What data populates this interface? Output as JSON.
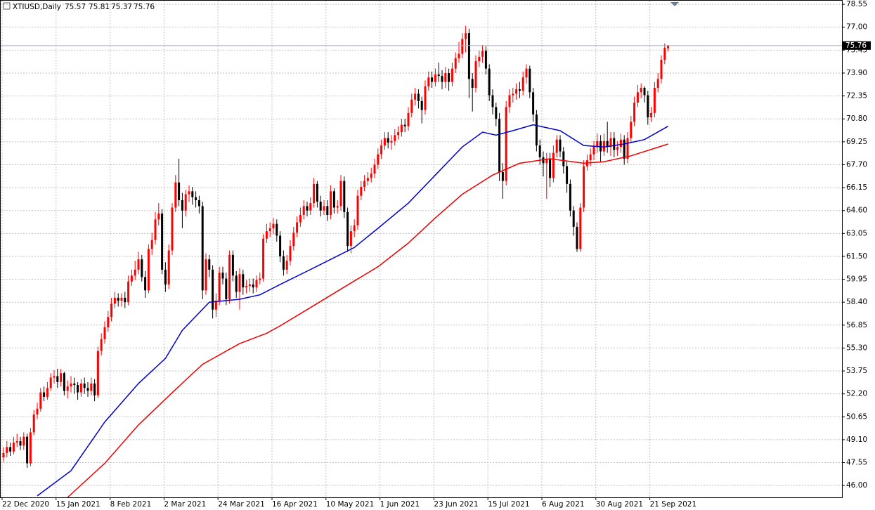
{
  "chart_data": {
    "type": "candlestick",
    "header": {
      "symbol": "XTIUSD,Daily",
      "values": [
        75.57,
        75.81,
        75.37,
        75.76
      ]
    },
    "up_color": "#ff0000",
    "down_color": "#000000",
    "grid": true,
    "ylim": [
      45.2,
      78.84
    ],
    "yticks": [
      78.55,
      {
        "value": 77,
        "label": "77.00"
      },
      75.45,
      {
        "value": 73.9,
        "label": "73.90"
      },
      72.35,
      {
        "value": 70.8,
        "label": "70.80"
      },
      69.25,
      {
        "value": 67.7,
        "label": "67.70"
      },
      66.15,
      {
        "value": 64.6,
        "label": "64.60"
      },
      63.05,
      {
        "value": 61.5,
        "label": "61.50"
      },
      59.95,
      {
        "value": 58.4,
        "label": "58.40"
      },
      56.85,
      {
        "value": 55.3,
        "label": "55.30"
      },
      53.75,
      {
        "value": 52.2,
        "label": "52.20"
      },
      50.65,
      {
        "value": 49.1,
        "label": "49.10"
      },
      47.55,
      {
        "value": 46,
        "label": "46.00"
      }
    ],
    "categories": [
      "22 Dec 2020",
      null,
      null,
      null,
      null,
      null,
      null,
      null,
      null,
      null,
      null,
      null,
      null,
      null,
      null,
      null,
      "15 Jan 2021",
      null,
      null,
      null,
      null,
      null,
      null,
      null,
      null,
      null,
      null,
      null,
      null,
      null,
      null,
      null,
      "8 Feb 2021",
      null,
      null,
      null,
      null,
      null,
      null,
      null,
      null,
      null,
      null,
      null,
      null,
      null,
      null,
      null,
      "2 Mar 2021",
      null,
      null,
      null,
      null,
      null,
      null,
      null,
      null,
      null,
      null,
      null,
      null,
      null,
      null,
      null,
      "24 Mar 2021",
      null,
      null,
      null,
      null,
      null,
      null,
      null,
      null,
      null,
      null,
      null,
      null,
      null,
      null,
      null,
      "16 Apr 2021",
      null,
      null,
      null,
      null,
      null,
      null,
      null,
      null,
      null,
      null,
      null,
      null,
      null,
      null,
      null,
      "10 May 2021",
      null,
      null,
      null,
      null,
      null,
      null,
      null,
      null,
      null,
      null,
      null,
      null,
      null,
      null,
      null,
      "1 Jun 2021",
      null,
      null,
      null,
      null,
      null,
      null,
      null,
      null,
      null,
      null,
      null,
      null,
      null,
      null,
      null,
      "23 Jun 2021",
      null,
      null,
      null,
      null,
      null,
      null,
      null,
      null,
      null,
      null,
      null,
      null,
      null,
      null,
      null,
      "15 Jul 2021",
      null,
      null,
      null,
      null,
      null,
      null,
      null,
      null,
      null,
      null,
      null,
      null,
      null,
      null,
      null,
      "6 Aug 2021",
      null,
      null,
      null,
      null,
      null,
      null,
      null,
      null,
      null,
      null,
      null,
      null,
      null,
      null,
      null,
      "30 Aug 2021",
      null,
      null,
      null,
      null,
      null,
      null,
      null,
      null,
      null,
      null,
      null,
      null,
      null,
      null,
      null,
      "21 Sep 2021",
      null,
      null,
      null,
      null,
      null
    ],
    "open": [
      47.9,
      48.2,
      48.6,
      48.3,
      48.9,
      49.0,
      48.7,
      49.3,
      47.5,
      49.6,
      50.8,
      51.2,
      52.3,
      52.0,
      52.6,
      53.3,
      53.4,
      53.0,
      53.6,
      52.4,
      52.7,
      52.9,
      52.8,
      52.3,
      52.9,
      52.6,
      52.4,
      52.9,
      52.1,
      55.1,
      55.9,
      56.7,
      57.4,
      58.3,
      58.7,
      58.5,
      58.7,
      58.4,
      59.8,
      60.2,
      60.6,
      61.3,
      60.1,
      59.2,
      62.0,
      62.6,
      64.0,
      64.4,
      60.6,
      59.6,
      61.9,
      64.8,
      66.5,
      65.3,
      64.6,
      65.7,
      65.9,
      65.5,
      65.3,
      64.9,
      59.2,
      61.3,
      60.6,
      57.9,
      58.5,
      60.4,
      60.0,
      58.6,
      61.6,
      60.2,
      59.1,
      60.3,
      59.4,
      59.5,
      59.6,
      59.4,
      59.9,
      60.0,
      62.7,
      63.2,
      63.4,
      63.7,
      62.9,
      61.5,
      60.6,
      61.2,
      62.2,
      63.1,
      63.8,
      64.3,
      64.9,
      64.6,
      65.1,
      66.4,
      65.2,
      64.6,
      64.9,
      64.3,
      65.9,
      64.8,
      64.9,
      66.6,
      64.5,
      62.2,
      63.2,
      63.6,
      65.6,
      66.2,
      66.6,
      66.8,
      67.1,
      67.7,
      68.4,
      69.0,
      69.5,
      69.2,
      69.3,
      69.7,
      69.9,
      70.4,
      70.3,
      71.2,
      72.1,
      72.5,
      72.0,
      71.4,
      73.0,
      73.6,
      73.3,
      73.8,
      73.7,
      73.3,
      73.9,
      73.3,
      74.2,
      74.9,
      75.2,
      76.2,
      76.6,
      73.5,
      72.9,
      74.7,
      75.0,
      75.4,
      74.2,
      72.4,
      71.6,
      70.8,
      67.2,
      66.6,
      71.6,
      72.4,
      72.5,
      72.8,
      72.7,
      73.6,
      74.2,
      72.6,
      71.1,
      69.0,
      68.2,
      67.8,
      68.1,
      66.8,
      68.5,
      69.4,
      68.6,
      67.6,
      66.4,
      64.6,
      63.5,
      62.0,
      64.8,
      67.6,
      68.0,
      68.4,
      68.9,
      69.3,
      68.6,
      69.3,
      68.9,
      69.5,
      68.7,
      68.9,
      69.4,
      68.1,
      69.5,
      70.6,
      71.9,
      72.6,
      72.9,
      72.4,
      70.9,
      71.2,
      72.9,
      73.5,
      74.8,
      75.57
    ],
    "high": [
      48.6,
      49.0,
      48.9,
      49.3,
      49.5,
      49.3,
      49.6,
      49.5,
      49.9,
      51.1,
      51.6,
      52.6,
      52.7,
      53.0,
      53.6,
      53.8,
      53.9,
      53.9,
      53.7,
      53.1,
      53.4,
      53.3,
      53.0,
      53.2,
      53.3,
      53.0,
      53.3,
      53.2,
      55.4,
      56.3,
      57.1,
      57.8,
      58.7,
      59.1,
      59.0,
      59.0,
      59.1,
      60.2,
      60.6,
      61.2,
      61.8,
      61.6,
      60.5,
      62.3,
      63.1,
      64.5,
      65.1,
      64.7,
      61.1,
      62.3,
      65.1,
      67.0,
      68.1,
      65.8,
      66.0,
      66.3,
      66.2,
      65.9,
      65.6,
      65.2,
      61.7,
      61.6,
      60.9,
      59.0,
      60.8,
      60.8,
      60.4,
      61.9,
      61.9,
      60.5,
      60.7,
      60.6,
      59.9,
      60.0,
      60.0,
      60.2,
      60.4,
      63.0,
      63.7,
      63.8,
      64.1,
      64.0,
      63.2,
      61.9,
      61.6,
      62.6,
      63.5,
      64.2,
      64.8,
      65.3,
      65.2,
      65.5,
      66.8,
      66.6,
      65.6,
      65.3,
      65.3,
      66.3,
      66.1,
      65.3,
      67.0,
      66.9,
      64.8,
      63.6,
      64.0,
      66.0,
      66.6,
      67.0,
      67.2,
      67.5,
      68.1,
      68.8,
      69.4,
      69.9,
      69.9,
      69.7,
      70.1,
      70.3,
      70.8,
      70.8,
      71.6,
      72.5,
      72.9,
      72.8,
      72.3,
      73.4,
      74.0,
      74.0,
      74.2,
      74.6,
      74.1,
      74.3,
      74.2,
      74.6,
      75.3,
      76.0,
      76.6,
      77.1,
      76.9,
      73.9,
      75.1,
      75.4,
      75.8,
      75.7,
      74.5,
      72.8,
      71.9,
      71.2,
      67.8,
      72.0,
      72.8,
      72.9,
      73.2,
      73.3,
      74.0,
      74.5,
      74.4,
      72.9,
      71.4,
      69.4,
      68.6,
      68.5,
      68.5,
      69.0,
      69.7,
      69.7,
      68.9,
      67.9,
      66.7,
      64.9,
      63.8,
      65.1,
      68.0,
      68.4,
      68.8,
      69.3,
      69.8,
      69.7,
      69.8,
      70.6,
      69.9,
      69.9,
      69.3,
      69.8,
      69.7,
      69.9,
      71.0,
      72.3,
      73.1,
      73.2,
      73.0,
      72.7,
      71.6,
      73.3,
      73.9,
      75.1,
      75.9,
      75.81
    ],
    "low": [
      47.6,
      47.9,
      48.0,
      48.1,
      48.6,
      48.4,
      48.4,
      47.2,
      47.3,
      49.4,
      50.5,
      51.0,
      51.7,
      51.8,
      52.4,
      52.9,
      52.6,
      52.7,
      52.1,
      51.9,
      52.3,
      52.2,
      51.8,
      52.0,
      52.2,
      52.0,
      52.1,
      51.7,
      51.9,
      54.8,
      55.6,
      56.4,
      57.1,
      58.0,
      58.1,
      58.1,
      58.0,
      58.2,
      59.5,
      59.9,
      60.3,
      59.8,
      58.7,
      59.0,
      61.6,
      62.3,
      63.6,
      60.3,
      59.1,
      59.3,
      61.6,
      64.5,
      64.9,
      63.4,
      64.2,
      65.2,
      65.0,
      64.8,
      64.4,
      58.6,
      58.9,
      60.1,
      57.3,
      57.4,
      58.2,
      59.6,
      58.2,
      58.3,
      59.8,
      58.7,
      57.9,
      58.9,
      59.0,
      59.1,
      59.0,
      59.1,
      59.6,
      59.8,
      62.4,
      62.8,
      63.0,
      62.5,
      61.1,
      60.2,
      60.3,
      60.9,
      61.9,
      62.8,
      63.5,
      64.0,
      64.2,
      64.3,
      64.8,
      64.8,
      64.2,
      64.3,
      63.9,
      64.0,
      64.4,
      64.4,
      64.6,
      64.1,
      61.8,
      61.7,
      62.8,
      63.3,
      65.3,
      65.9,
      66.3,
      66.5,
      66.8,
      67.4,
      68.1,
      68.7,
      68.8,
      68.7,
      69.0,
      69.4,
      69.6,
      69.9,
      70.0,
      70.9,
      71.7,
      71.5,
      70.5,
      71.1,
      72.7,
      72.9,
      73.0,
      73.3,
      72.8,
      72.9,
      72.7,
      73.0,
      73.9,
      74.6,
      74.9,
      75.3,
      72.2,
      71.3,
      72.6,
      74.3,
      74.6,
      73.8,
      72.0,
      71.1,
      70.3,
      66.6,
      65.4,
      66.3,
      71.2,
      71.9,
      72.1,
      72.2,
      72.4,
      73.2,
      72.2,
      70.6,
      68.6,
      67.7,
      66.9,
      65.4,
      66.2,
      66.5,
      68.2,
      68.2,
      67.1,
      65.8,
      64.2,
      62.9,
      61.8,
      61.8,
      64.5,
      67.3,
      67.6,
      68.0,
      68.5,
      67.9,
      68.3,
      68.5,
      68.3,
      68.2,
      68.3,
      68.5,
      67.7,
      67.8,
      69.2,
      70.3,
      71.6,
      72.2,
      71.9,
      70.4,
      70.6,
      70.9,
      72.6,
      73.2,
      74.5,
      75.37
    ],
    "close": [
      48.2,
      48.6,
      48.3,
      48.9,
      49.0,
      48.7,
      49.3,
      47.5,
      49.6,
      50.8,
      51.2,
      52.3,
      52.0,
      52.6,
      53.3,
      53.4,
      53.0,
      53.6,
      52.4,
      52.7,
      52.9,
      52.8,
      52.3,
      52.9,
      52.6,
      52.4,
      52.9,
      52.1,
      55.1,
      55.9,
      56.7,
      57.4,
      58.3,
      58.7,
      58.5,
      58.7,
      58.4,
      59.8,
      60.2,
      60.6,
      61.3,
      60.1,
      59.2,
      62.0,
      62.6,
      64.0,
      64.4,
      60.6,
      59.6,
      61.9,
      64.8,
      66.5,
      65.3,
      64.6,
      65.7,
      65.9,
      65.5,
      65.3,
      64.9,
      59.2,
      61.3,
      60.6,
      57.9,
      58.5,
      60.4,
      60.0,
      58.6,
      61.6,
      60.2,
      59.1,
      60.3,
      59.4,
      59.5,
      59.6,
      59.4,
      59.9,
      60.0,
      62.7,
      63.2,
      63.4,
      63.7,
      62.9,
      61.5,
      60.6,
      61.2,
      62.2,
      63.1,
      63.8,
      64.3,
      64.9,
      64.6,
      65.1,
      66.4,
      65.2,
      64.6,
      64.9,
      64.3,
      65.9,
      64.8,
      64.9,
      66.6,
      64.5,
      62.2,
      63.2,
      63.6,
      65.6,
      66.2,
      66.6,
      66.8,
      67.1,
      67.7,
      68.4,
      69.0,
      69.5,
      69.2,
      69.3,
      69.7,
      69.9,
      70.4,
      70.3,
      71.2,
      72.1,
      72.5,
      72.0,
      71.4,
      73.0,
      73.6,
      73.3,
      73.8,
      73.7,
      73.3,
      73.9,
      73.3,
      74.2,
      74.9,
      75.2,
      76.2,
      76.6,
      73.5,
      72.9,
      74.7,
      75.0,
      75.4,
      74.2,
      72.4,
      71.6,
      70.8,
      67.2,
      66.6,
      71.6,
      72.4,
      72.5,
      72.8,
      72.7,
      73.6,
      74.2,
      72.6,
      71.1,
      69.0,
      68.2,
      67.8,
      68.1,
      66.8,
      68.5,
      69.4,
      68.6,
      67.6,
      66.4,
      64.6,
      63.5,
      62.0,
      64.8,
      67.6,
      68.0,
      68.4,
      68.9,
      69.3,
      68.6,
      69.3,
      68.9,
      69.5,
      68.7,
      68.9,
      69.4,
      68.1,
      69.5,
      70.6,
      71.9,
      72.6,
      72.9,
      72.4,
      70.9,
      71.2,
      72.9,
      73.5,
      74.8,
      75.6,
      75.76
    ],
    "lines": [
      {
        "color": "#0000cc",
        "x": [
          10,
          20,
          30,
          40,
          48,
          53,
          61,
          70,
          76,
          82,
          90,
          97,
          104,
          111,
          120,
          128,
          136,
          142,
          146,
          151,
          157,
          165,
          172,
          178,
          184,
          190,
          197
        ],
        "values": [
          45.3,
          47.0,
          50.3,
          52.9,
          54.6,
          56.5,
          58.4,
          58.6,
          58.9,
          59.6,
          60.5,
          61.3,
          62.1,
          63.4,
          65.1,
          67.0,
          68.9,
          69.9,
          69.7,
          70.0,
          70.4,
          70.0,
          69.0,
          68.9,
          69.1,
          69.4,
          70.3
        ]
      },
      {
        "color": "#ee0000",
        "x": [
          19,
          30,
          40,
          51,
          59,
          70,
          78,
          82,
          90,
          103,
          111,
          120,
          128,
          136,
          145,
          153,
          162,
          172,
          178,
          186,
          197
        ],
        "values": [
          45.2,
          47.5,
          50.1,
          52.5,
          54.2,
          55.6,
          56.3,
          56.8,
          57.9,
          59.7,
          60.8,
          62.4,
          64.1,
          65.7,
          67.0,
          67.8,
          68.1,
          67.8,
          67.9,
          68.3,
          69.1
        ]
      }
    ]
  }
}
